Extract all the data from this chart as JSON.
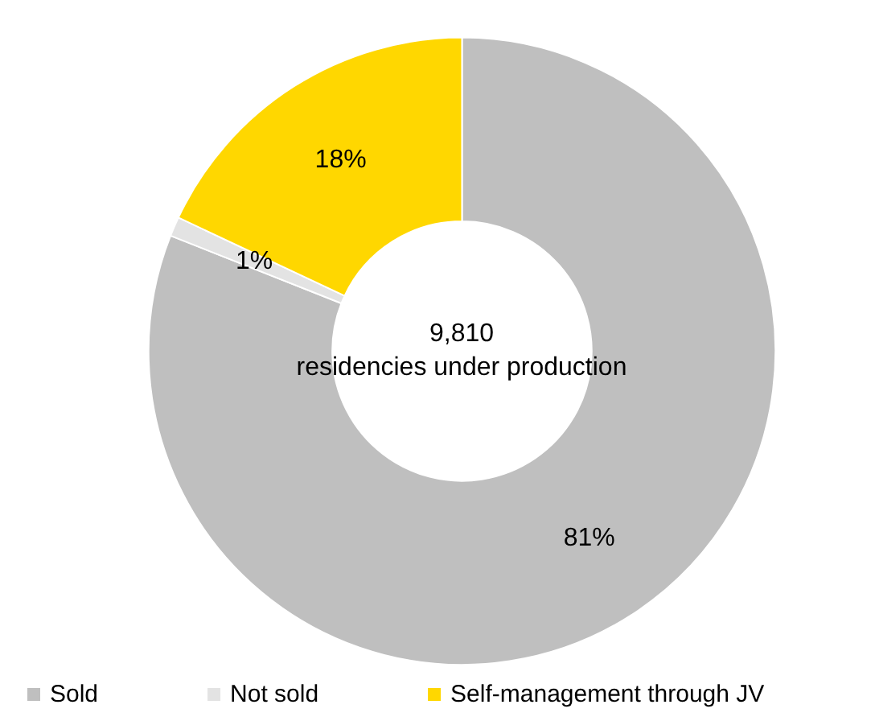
{
  "chart_data": {
    "type": "donut",
    "categories": [
      "Sold",
      "Not sold",
      "Self-management through JV"
    ],
    "values": [
      81,
      1,
      18
    ],
    "colors": [
      "#bfbfbf",
      "#e3e3e3",
      "#ffd700"
    ],
    "annotations": [
      "9,810\nresidencies under production"
    ],
    "value_labels": [
      "81%",
      "1%",
      "18%"
    ],
    "legend": "bottom"
  }
}
